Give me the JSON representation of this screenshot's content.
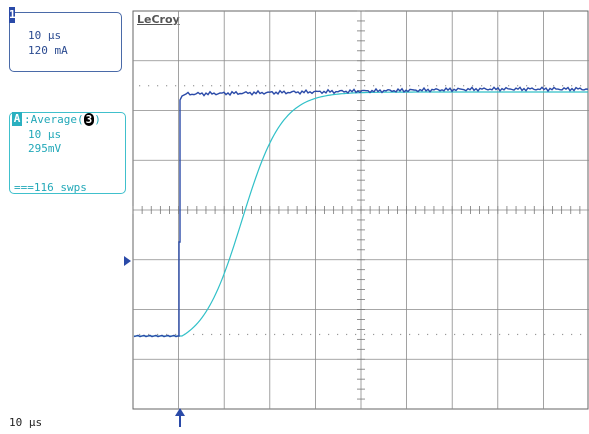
{
  "brand": "LeCroy",
  "channel1": {
    "tag": "1",
    "timebase": "10 µs",
    "scale": "120 mA",
    "trace_color": "#2a4aa8"
  },
  "math_a": {
    "tag": "A",
    "function": ":Average(",
    "source_badge": "3",
    "function_close": ")",
    "timebase": "10 µs",
    "scale": "295mV",
    "sweeps": "===116 swps",
    "trace_color": "#30c0c8"
  },
  "timebase_readout": "10 µs",
  "grid": {
    "divisions_x": 10,
    "divisions_y": 8
  },
  "markers": {
    "ground_level": "left-arrow",
    "trigger_position": "up-arrow"
  }
}
